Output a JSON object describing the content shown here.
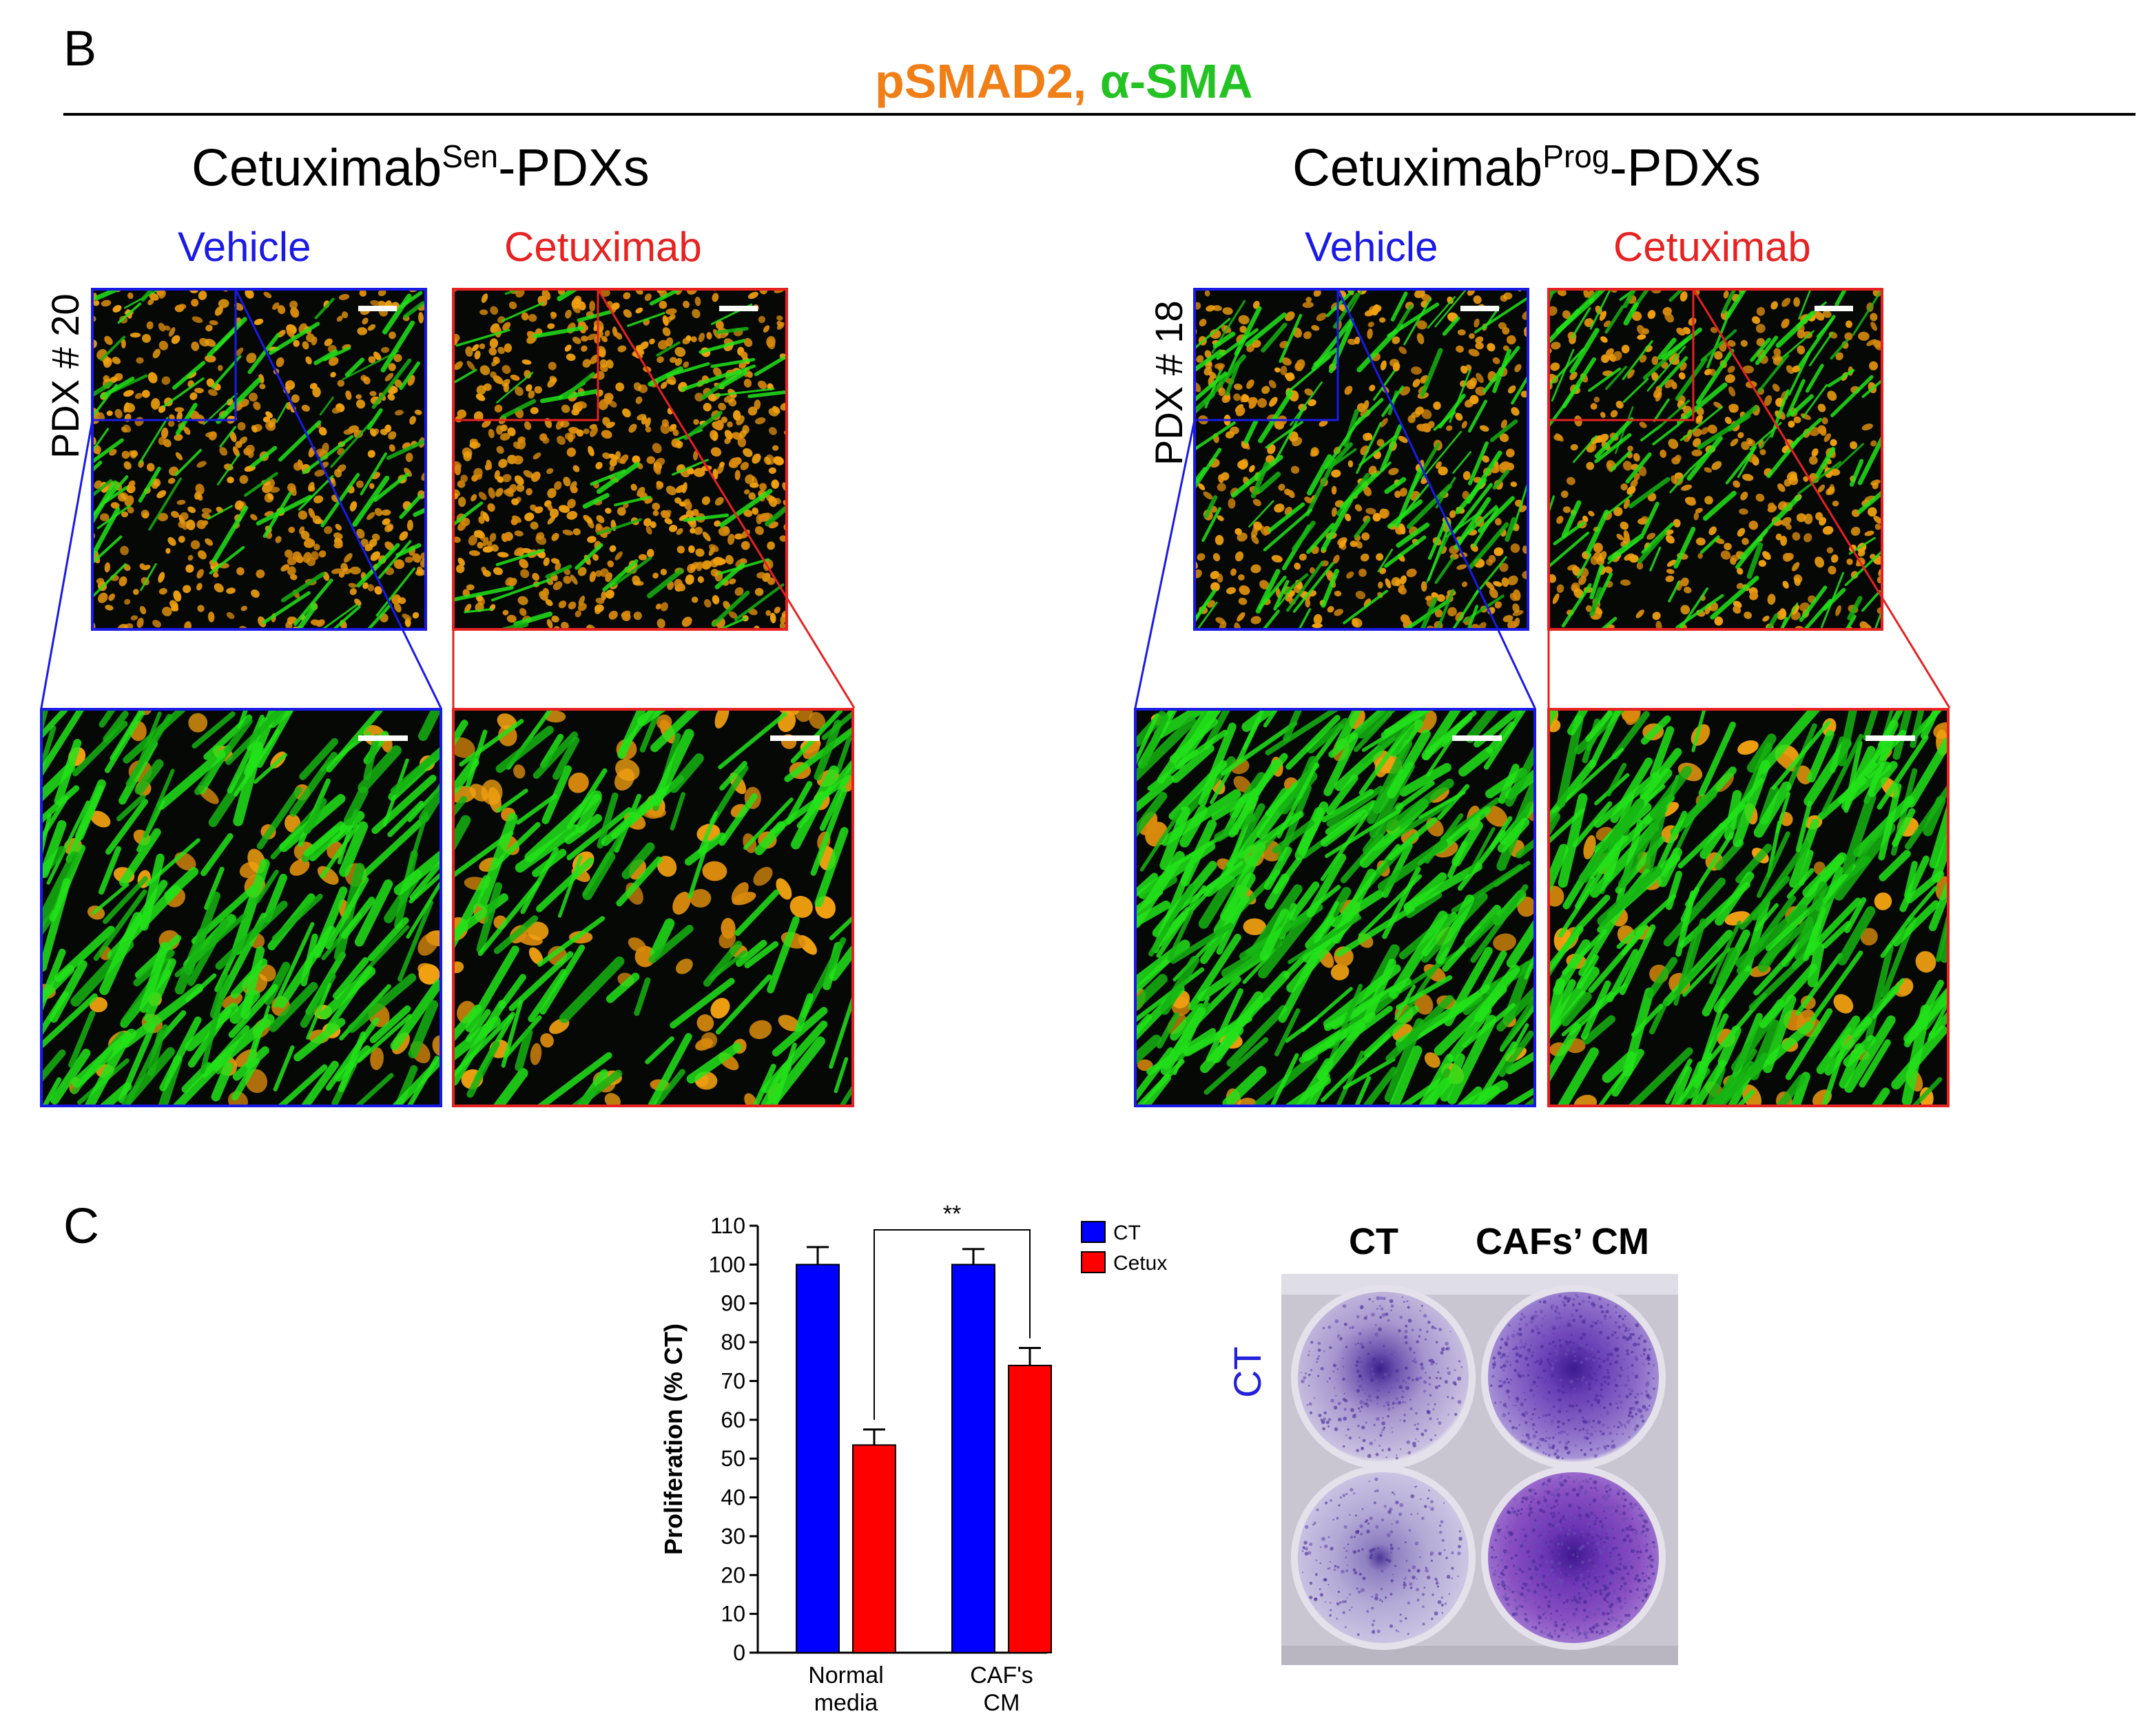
{
  "panel_b": {
    "letter": "B",
    "stain": {
      "part1": "pSMAD2, ",
      "part2": "α-SMA",
      "color1": "#f07f17",
      "color2": "#22c322"
    },
    "groups": [
      {
        "name_main": "Cetuximab",
        "name_sup": "Sen",
        "name_tail": "-PDXs",
        "pdx": "PDX # 20",
        "vehicle_label": "Vehicle",
        "treated_label": "Cetuximab"
      },
      {
        "name_main": "Cetuximab",
        "name_sup": "Prog",
        "name_tail": "-PDXs",
        "pdx": "PDX # 18",
        "vehicle_label": "Vehicle",
        "treated_label": "Cetuximab"
      }
    ],
    "colors": {
      "vehicle": "#1a1ae6",
      "treated": "#e62222",
      "nuclei": "#f0a010",
      "sma": "#22e31a"
    }
  },
  "panel_c": {
    "letter": "C",
    "plate": {
      "col1": "CT",
      "col2": "CAFs’ CM",
      "row": "CT"
    }
  },
  "chart_data": {
    "type": "bar",
    "categories": [
      "Normal media",
      "CAF's CM"
    ],
    "category_lines": [
      [
        "Normal",
        "media"
      ],
      [
        "CAF's",
        "CM"
      ]
    ],
    "series": [
      {
        "name": "CT",
        "values": [
          100,
          100
        ],
        "errors": [
          4.5,
          4
        ],
        "color": "#0000ff"
      },
      {
        "name": "Cetux",
        "values": [
          53.5,
          74
        ],
        "errors": [
          4,
          4.5
        ],
        "color": "#ff0000"
      }
    ],
    "ylabel": "Proliferation (% CT)",
    "xlabel": "",
    "ylim": [
      0,
      110
    ],
    "yticks": [
      0,
      10,
      20,
      30,
      40,
      50,
      60,
      70,
      80,
      90,
      100,
      110
    ],
    "significance": {
      "label": "**",
      "between": [
        "Normal media Cetux",
        "CAF's CM Cetux"
      ]
    },
    "legend_position": "top-right",
    "grid": false
  }
}
